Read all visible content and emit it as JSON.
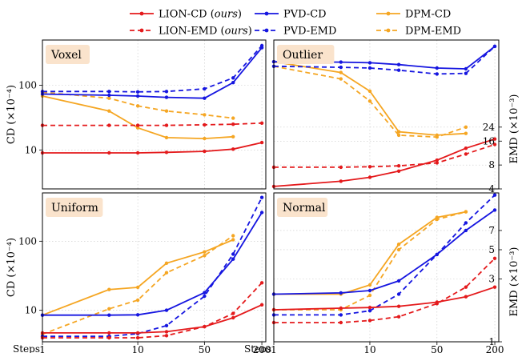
{
  "chart_data": {
    "type": "line",
    "x_ticks": [
      1,
      10,
      50,
      200
    ],
    "x_range": [
      1,
      220
    ],
    "x_scale": "log",
    "steps_label": "Steps",
    "legend": [
      {
        "label": "LION-CD (ours)",
        "color": "#e41a1c",
        "dash": false
      },
      {
        "label": "PVD-CD",
        "color": "#1515e0",
        "dash": false
      },
      {
        "label": "DPM-CD",
        "color": "#f5a623",
        "dash": false
      },
      {
        "label": "LION-EMD (ours)",
        "color": "#e41a1c",
        "dash": true
      },
      {
        "label": "PVD-EMD",
        "color": "#1515e0",
        "dash": true
      },
      {
        "label": "DPM-EMD",
        "color": "#f5a623",
        "dash": true
      }
    ],
    "panels": [
      {
        "title": "Voxel",
        "ylabel_left": "CD (×10⁻⁴)",
        "ylabel_right": "",
        "y_scale": "log",
        "y_range": [
          2.5,
          500
        ],
        "y_ticks_left": [
          10,
          100
        ],
        "y_ticks_right": [],
        "series": [
          {
            "name": "LION-CD (ours)",
            "x": [
              1,
              5,
              10,
              20,
              50,
              100,
              200
            ],
            "y": [
              9,
              9,
              9,
              9.2,
              9.5,
              10.3,
              13
            ]
          },
          {
            "name": "LION-EMD (ours)",
            "x": [
              1,
              5,
              10,
              20,
              50,
              100,
              200
            ],
            "y": [
              24,
              24,
              24,
              24,
              24.5,
              25,
              26
            ]
          },
          {
            "name": "PVD-CD",
            "x": [
              1,
              5,
              10,
              20,
              50,
              100,
              200
            ],
            "y": [
              73,
              70,
              68,
              65,
              63,
              110,
              380
            ]
          },
          {
            "name": "PVD-EMD",
            "x": [
              1,
              5,
              10,
              20,
              50,
              100,
              200
            ],
            "y": [
              80,
              80,
              79,
              80,
              88,
              130,
              410
            ]
          },
          {
            "name": "DPM-CD",
            "x": [
              1,
              5,
              10,
              20,
              50,
              100
            ],
            "y": [
              68,
              40,
              22,
              15.5,
              15,
              16
            ]
          },
          {
            "name": "DPM-EMD",
            "x": [
              1,
              5,
              10,
              20,
              50,
              100
            ],
            "y": [
              78,
              63,
              48,
              40,
              35,
              31
            ]
          }
        ]
      },
      {
        "title": "Outlier",
        "ylabel_left": "",
        "ylabel_right": "EMD (×10⁻³)",
        "y_scale": "log",
        "y_range": [
          4,
          300
        ],
        "y_ticks_left": [],
        "y_ticks_right": [
          4,
          8,
          16,
          24
        ],
        "series": [
          {
            "name": "LION-CD (ours)",
            "x": [
              1,
              5,
              10,
              20,
              50,
              100,
              200
            ],
            "y": [
              4.3,
              5.0,
              5.6,
              6.7,
              9.2,
              13,
              17
            ]
          },
          {
            "name": "LION-EMD (ours)",
            "x": [
              1,
              5,
              10,
              20,
              50,
              100,
              200
            ],
            "y": [
              7.5,
              7.5,
              7.6,
              7.8,
              8.5,
              11,
              14.5
            ]
          },
          {
            "name": "PVD-CD",
            "x": [
              1,
              5,
              10,
              20,
              50,
              100,
              200
            ],
            "y": [
              160,
              158,
              155,
              147,
              133,
              130,
              250
            ]
          },
          {
            "name": "PVD-EMD",
            "x": [
              1,
              5,
              10,
              20,
              50,
              100,
              200
            ],
            "y": [
              140,
              136,
              133,
              125,
              112,
              114,
              250
            ]
          },
          {
            "name": "DPM-CD",
            "x": [
              1,
              5,
              10,
              20,
              50,
              100
            ],
            "y": [
              160,
              117,
              68,
              21,
              19,
              20
            ]
          },
          {
            "name": "DPM-EMD",
            "x": [
              1,
              5,
              10,
              20,
              50,
              100
            ],
            "y": [
              140,
              97,
              51,
              19,
              18,
              24
            ]
          }
        ]
      },
      {
        "title": "Uniform",
        "ylabel_left": "CD (×10⁻⁴)",
        "ylabel_right": "",
        "y_scale": "log",
        "y_range": [
          3.5,
          500
        ],
        "y_ticks_left": [
          10,
          100
        ],
        "y_ticks_right": [],
        "series": [
          {
            "name": "LION-CD (ours)",
            "x": [
              1,
              5,
              10,
              20,
              50,
              100,
              200
            ],
            "y": [
              4.7,
              4.7,
              4.7,
              4.9,
              5.8,
              7.8,
              12
            ]
          },
          {
            "name": "LION-EMD (ours)",
            "x": [
              1,
              5,
              10,
              20,
              50,
              100,
              200
            ],
            "y": [
              4.0,
              4.0,
              4.0,
              4.3,
              5.8,
              9,
              25
            ]
          },
          {
            "name": "PVD-CD",
            "x": [
              1,
              5,
              10,
              20,
              50,
              100,
              200
            ],
            "y": [
              8.5,
              8.5,
              8.6,
              10,
              18,
              55,
              260
            ]
          },
          {
            "name": "PVD-EMD",
            "x": [
              1,
              5,
              10,
              20,
              50,
              100,
              200
            ],
            "y": [
              4.2,
              4.2,
              4.6,
              6,
              16,
              65,
              430
            ]
          },
          {
            "name": "DPM-CD",
            "x": [
              1,
              5,
              10,
              20,
              50,
              100
            ],
            "y": [
              8.5,
              20,
              21.5,
              48,
              70,
              105
            ]
          },
          {
            "name": "DPM-EMD",
            "x": [
              1,
              5,
              10,
              20,
              50,
              100
            ],
            "y": [
              4.5,
              10.5,
              14,
              35,
              62,
              120
            ]
          }
        ]
      },
      {
        "title": "Normal",
        "ylabel_left": "",
        "ylabel_right": "EMD (×10⁻³)",
        "y_scale": "log",
        "y_range": [
          1,
          13.5
        ],
        "y_ticks_left": [],
        "y_ticks_right": [
          1,
          3,
          5,
          7
        ],
        "series": [
          {
            "name": "LION-CD (ours)",
            "x": [
              1,
              5,
              10,
              20,
              50,
              100,
              200
            ],
            "y": [
              1.75,
              1.8,
              1.82,
              1.86,
              2.0,
              2.2,
              2.6
            ]
          },
          {
            "name": "LION-EMD (ours)",
            "x": [
              1,
              5,
              10,
              20,
              50,
              100,
              200
            ],
            "y": [
              1.4,
              1.4,
              1.45,
              1.55,
              1.95,
              2.6,
              4.3
            ]
          },
          {
            "name": "PVD-CD",
            "x": [
              1,
              5,
              10,
              20,
              50,
              100,
              200
            ],
            "y": [
              2.3,
              2.35,
              2.45,
              2.9,
              4.6,
              7,
              10
            ]
          },
          {
            "name": "PVD-EMD",
            "x": [
              1,
              5,
              10,
              20,
              50,
              100,
              200
            ],
            "y": [
              1.6,
              1.6,
              1.72,
              2.3,
              4.6,
              8,
              13
            ]
          },
          {
            "name": "DPM-CD",
            "x": [
              1,
              5,
              10,
              20,
              50,
              100
            ],
            "y": [
              2.3,
              2.3,
              2.7,
              5.5,
              8.8,
              9.7
            ]
          },
          {
            "name": "DPM-EMD",
            "x": [
              1,
              5,
              10,
              20,
              50,
              100
            ],
            "y": [
              1.75,
              1.75,
              2.25,
              5.0,
              8.5,
              9.7
            ]
          }
        ]
      }
    ]
  }
}
